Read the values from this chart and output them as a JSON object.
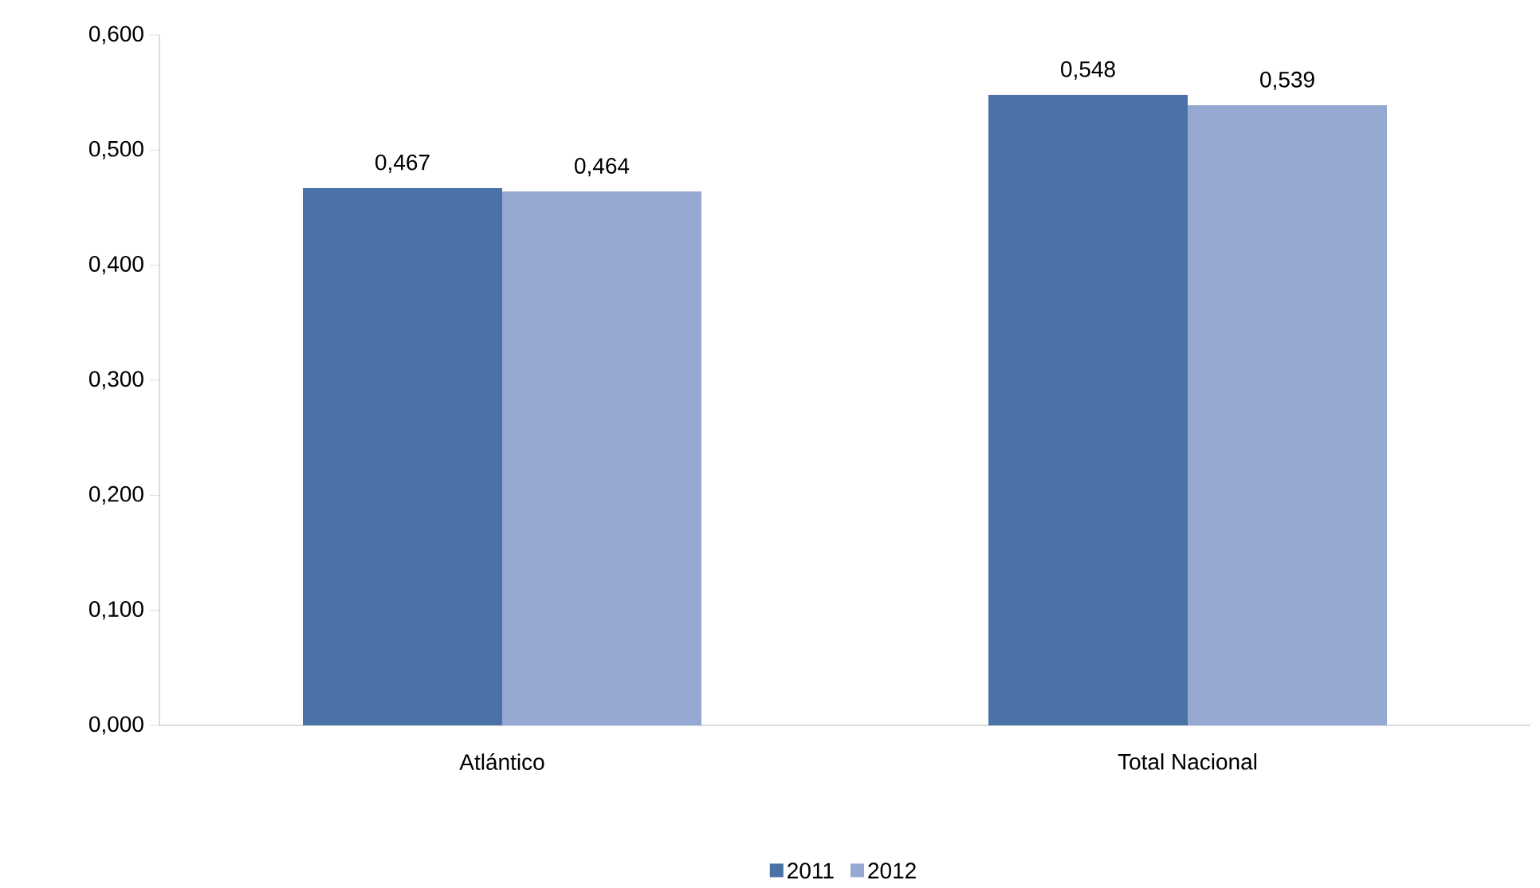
{
  "chart_data": {
    "type": "bar",
    "categories": [
      "Atlántico",
      "Total Nacional"
    ],
    "series": [
      {
        "name": "2011",
        "color": "#4a72a6",
        "values": [
          0.467,
          0.548
        ],
        "value_labels": [
          "0,467",
          "0,548"
        ]
      },
      {
        "name": "2012",
        "color": "#95a9d2",
        "values": [
          0.464,
          0.539
        ],
        "value_labels": [
          "0,464",
          "0,539"
        ]
      }
    ],
    "ylim": [
      0,
      0.6
    ],
    "yticks": [
      {
        "value": 0,
        "label": "0,000"
      },
      {
        "value": 0.1,
        "label": "0,100"
      },
      {
        "value": 0.2,
        "label": "0,200"
      },
      {
        "value": 0.3,
        "label": "0,300"
      },
      {
        "value": 0.4,
        "label": "0,400"
      },
      {
        "value": 0.5,
        "label": "0,500"
      },
      {
        "value": 0.6,
        "label": "0,600"
      }
    ],
    "legend": "bottom"
  }
}
